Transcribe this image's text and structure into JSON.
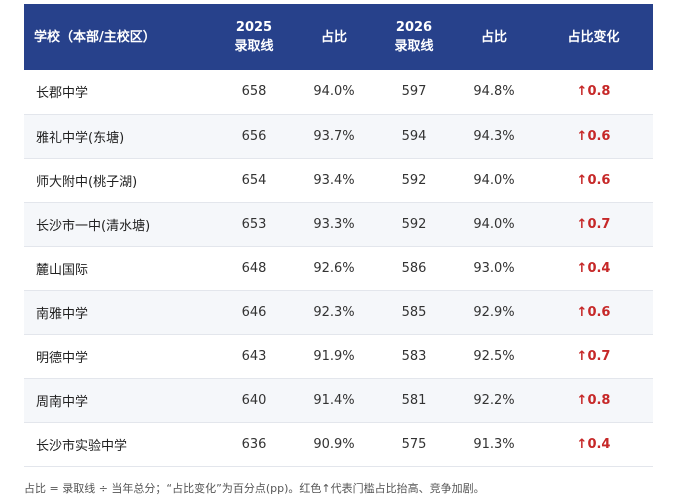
{
  "headers": {
    "school": "学校（本部/主校区）",
    "y2025_line1": "2025",
    "y2025_line2": "录取线",
    "ratio1": "占比",
    "y2026_line1": "2026",
    "y2026_line2": "录取线",
    "ratio2": "占比",
    "change": "占比变化"
  },
  "rows": [
    {
      "school": "长郡中学",
      "score2025": "658",
      "ratio2025": "94.0%",
      "score2026": "597",
      "ratio2026": "94.8%",
      "arrow": "↑",
      "change": "0.8"
    },
    {
      "school": "雅礼中学(东塘)",
      "score2025": "656",
      "ratio2025": "93.7%",
      "score2026": "594",
      "ratio2026": "94.3%",
      "arrow": "↑",
      "change": "0.6"
    },
    {
      "school": "师大附中(桃子湖)",
      "score2025": "654",
      "ratio2025": "93.4%",
      "score2026": "592",
      "ratio2026": "94.0%",
      "arrow": "↑",
      "change": "0.6"
    },
    {
      "school": "长沙市一中(清水塘)",
      "score2025": "653",
      "ratio2025": "93.3%",
      "score2026": "592",
      "ratio2026": "94.0%",
      "arrow": "↑",
      "change": "0.7"
    },
    {
      "school": "麓山国际",
      "score2025": "648",
      "ratio2025": "92.6%",
      "score2026": "586",
      "ratio2026": "93.0%",
      "arrow": "↑",
      "change": "0.4"
    },
    {
      "school": "南雅中学",
      "score2025": "646",
      "ratio2025": "92.3%",
      "score2026": "585",
      "ratio2026": "92.9%",
      "arrow": "↑",
      "change": "0.6"
    },
    {
      "school": "明德中学",
      "score2025": "643",
      "ratio2025": "91.9%",
      "score2026": "583",
      "ratio2026": "92.5%",
      "arrow": "↑",
      "change": "0.7"
    },
    {
      "school": "周南中学",
      "score2025": "640",
      "ratio2025": "91.4%",
      "score2026": "581",
      "ratio2026": "92.2%",
      "arrow": "↑",
      "change": "0.8"
    },
    {
      "school": "长沙市实验中学",
      "score2025": "636",
      "ratio2025": "90.9%",
      "score2026": "575",
      "ratio2026": "91.3%",
      "arrow": "↑",
      "change": "0.4"
    }
  ],
  "note": "占比 = 录取线 ÷ 当年总分；“占比变化”为百分点(pp)。红色↑代表门槛占比抬高、竞争加剧。",
  "colors": {
    "header_bg": "#27418b",
    "increase": "#c62828"
  }
}
